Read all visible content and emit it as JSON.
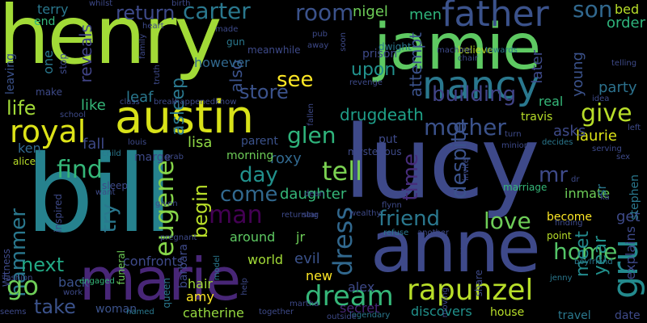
{
  "words": [
    {
      "text": "henry",
      "color": "#a2da37"
    },
    {
      "text": "bill",
      "color": "#26828e"
    },
    {
      "text": "lucy",
      "color": "#3e4989"
    },
    {
      "text": "jamie",
      "color": "#5ec962"
    },
    {
      "text": "anne",
      "color": "#3e4989"
    },
    {
      "text": "marie",
      "color": "#482677"
    },
    {
      "text": "austin",
      "color": "#d8e219"
    },
    {
      "text": "nancy",
      "color": "#2a788e"
    },
    {
      "text": "father",
      "color": "#3b528b"
    },
    {
      "text": "royal",
      "color": "#dde318"
    },
    {
      "text": "rapunzel",
      "color": "#b8de29"
    },
    {
      "text": "gru",
      "color": "#238a8d"
    },
    {
      "text": "dream",
      "color": "#35b779"
    },
    {
      "text": "tell",
      "color": "#7ad151"
    },
    {
      "text": "carter",
      "color": "#2a788e"
    },
    {
      "text": "return",
      "color": "#3e4a89"
    },
    {
      "text": "room",
      "color": "#3b528b"
    },
    {
      "text": "son",
      "color": "#31688e"
    },
    {
      "text": "mother",
      "color": "#3b528b"
    },
    {
      "text": "glen",
      "color": "#2fb47c"
    },
    {
      "text": "give",
      "color": "#b8de29"
    },
    {
      "text": "find",
      "color": "#35b779"
    },
    {
      "text": "man",
      "color": "#440154"
    },
    {
      "text": "love",
      "color": "#6ece58"
    },
    {
      "text": "friend",
      "color": "#2a788e"
    },
    {
      "text": "eugene",
      "color": "#86d549"
    },
    {
      "text": "dress",
      "color": "#31688e"
    },
    {
      "text": "hammer",
      "color": "#2a788e"
    },
    {
      "text": "go",
      "color": "#6ece58"
    },
    {
      "text": "next",
      "color": "#22a884"
    },
    {
      "text": "take",
      "color": "#3b528b"
    },
    {
      "text": "home",
      "color": "#54c568"
    },
    {
      "text": "life",
      "color": "#a2da37"
    },
    {
      "text": "store",
      "color": "#3b528b"
    },
    {
      "text": "see",
      "color": "#fde725"
    },
    {
      "text": "day",
      "color": "#21918c"
    },
    {
      "text": "come",
      "color": "#31688e"
    },
    {
      "text": "begin",
      "color": "#b8de29"
    },
    {
      "text": "try",
      "color": "#2a788e"
    },
    {
      "text": "mr",
      "color": "#3e4a89"
    },
    {
      "text": "building",
      "color": "#414487"
    },
    {
      "text": "despite",
      "color": "#3b528b"
    },
    {
      "text": "time",
      "color": "#472d7b"
    },
    {
      "text": "drug",
      "color": "#1f9e89"
    },
    {
      "text": "death",
      "color": "#1fa187"
    },
    {
      "text": "asleep",
      "color": "#2a788e"
    },
    {
      "text": "also",
      "color": "#3b528b"
    },
    {
      "text": "roxy",
      "color": "#31688e"
    },
    {
      "text": "daughter",
      "color": "#35b779"
    },
    {
      "text": "lisa",
      "color": "#8fd744"
    },
    {
      "text": "laurie",
      "color": "#dde318"
    },
    {
      "text": "asks",
      "color": "#3e4a89"
    },
    {
      "text": "meet",
      "color": "#238a8d"
    },
    {
      "text": "year",
      "color": "#21918c"
    },
    {
      "text": "explains",
      "color": "#3e4989"
    },
    {
      "text": "party",
      "color": "#2c728e"
    },
    {
      "text": "young",
      "color": "#3b528b"
    },
    {
      "text": "later",
      "color": "#3e4a89"
    },
    {
      "text": "real",
      "color": "#35b779"
    },
    {
      "text": "nigel",
      "color": "#6ece58"
    },
    {
      "text": "men",
      "color": "#2fb47c"
    },
    {
      "text": "upon",
      "color": "#21918c"
    },
    {
      "text": "attempt",
      "color": "#3b528b"
    },
    {
      "text": "prison",
      "color": "#3e4a89"
    },
    {
      "text": "however",
      "color": "#31688e"
    },
    {
      "text": "leaf",
      "color": "#2a788e"
    },
    {
      "text": "reveals",
      "color": "#414487"
    },
    {
      "text": "like",
      "color": "#35b779"
    },
    {
      "text": "ken",
      "color": "#31688e"
    },
    {
      "text": "fall",
      "color": "#3e4a89"
    },
    {
      "text": "marge",
      "color": "#3e4a89"
    },
    {
      "text": "parent",
      "color": "#3b528b"
    },
    {
      "text": "morning",
      "color": "#6ece58"
    },
    {
      "text": "barbara",
      "color": "#3e4a89"
    },
    {
      "text": "jr",
      "color": "#6ece58"
    },
    {
      "text": "evil",
      "color": "#3b528b"
    },
    {
      "text": "world",
      "color": "#a2da37"
    },
    {
      "text": "around",
      "color": "#5ec962"
    },
    {
      "text": "confronts",
      "color": "#3e4a89"
    },
    {
      "text": "back",
      "color": "#3b528b"
    },
    {
      "text": "hair",
      "color": "#a2da37"
    },
    {
      "text": "amy",
      "color": "#fde725"
    },
    {
      "text": "catherine",
      "color": "#95d840"
    },
    {
      "text": "woman",
      "color": "#3b528b"
    },
    {
      "text": "queen",
      "color": "#2a788e"
    },
    {
      "text": "new",
      "color": "#fde725"
    },
    {
      "text": "alex",
      "color": "#3e4a89"
    },
    {
      "text": "secret",
      "color": "#482677"
    },
    {
      "text": "discovers",
      "color": "#21918c"
    },
    {
      "text": "marriage",
      "color": "#35b779"
    },
    {
      "text": "become",
      "color": "#fde725"
    },
    {
      "text": "point",
      "color": "#b8de29"
    },
    {
      "text": "inmate",
      "color": "#6ece58"
    },
    {
      "text": "get",
      "color": "#3e4a89"
    },
    {
      "text": "sr",
      "color": "#2a788e"
    },
    {
      "text": "stephen",
      "color": "#2a788e"
    },
    {
      "text": "order",
      "color": "#2fb47c"
    },
    {
      "text": "bed",
      "color": "#b8de29"
    },
    {
      "text": "terry",
      "color": "#2a788e"
    },
    {
      "text": "end",
      "color": "#35b779"
    },
    {
      "text": "leaving",
      "color": "#3b528b"
    },
    {
      "text": "one",
      "color": "#2a788e"
    },
    {
      "text": "stop",
      "color": "#3e4a89"
    },
    {
      "text": "make",
      "color": "#3e4a89"
    },
    {
      "text": "alice",
      "color": "#b8de29"
    },
    {
      "text": "Witness",
      "color": "#3e4a89"
    },
    {
      "text": "seems",
      "color": "#3e4a89"
    },
    {
      "text": "fashion",
      "color": "#3e4a89"
    },
    {
      "text": "engaged",
      "color": "#35b779"
    },
    {
      "text": "work",
      "color": "#3e4a89"
    },
    {
      "text": "named",
      "color": "#2a788e"
    },
    {
      "text": "funeral",
      "color": "#6ece58"
    },
    {
      "text": "sleep",
      "color": "#3e4a89"
    },
    {
      "text": "want",
      "color": "#3e4a89"
    },
    {
      "text": "child",
      "color": "#2a788e"
    },
    {
      "text": "louis",
      "color": "#3e4a89"
    },
    {
      "text": "travis",
      "color": "#b8de29"
    },
    {
      "text": "mysterious",
      "color": "#3e4a89"
    },
    {
      "text": "dwight",
      "color": "#2a788e"
    },
    {
      "text": "meanwhile",
      "color": "#3e4a89"
    },
    {
      "text": "believe",
      "color": "#b8de29"
    },
    {
      "text": "machine",
      "color": "#3e4a89"
    },
    {
      "text": "towards",
      "color": "#2a788e"
    },
    {
      "text": "travel",
      "color": "#2a788e"
    },
    {
      "text": "date",
      "color": "#3e4a89"
    },
    {
      "text": "house",
      "color": "#b8de29"
    },
    {
      "text": "legendary",
      "color": "#2a788e"
    },
    {
      "text": "together",
      "color": "#3e4a89"
    },
    {
      "text": "outside",
      "color": "#3e4a89"
    },
    {
      "text": "help",
      "color": "#3e4a89"
    },
    {
      "text": "model",
      "color": "#2a788e"
    },
    {
      "text": "jenny",
      "color": "#2a788e"
    },
    {
      "text": "boyfriend",
      "color": "#2a788e"
    },
    {
      "text": "share",
      "color": "#3e4a89"
    },
    {
      "text": "moving",
      "color": "#3e4a89"
    },
    {
      "text": "kiss",
      "color": "#3e4a89"
    },
    {
      "text": "refuse",
      "color": "#2a788e"
    },
    {
      "text": "another",
      "color": "#3e4a89"
    },
    {
      "text": "wealthy",
      "color": "#3e4a89"
    },
    {
      "text": "say",
      "color": "#6ece58"
    },
    {
      "text": "flynn",
      "color": "#3e4a89"
    },
    {
      "text": "dean",
      "color": "#3e4a89"
    },
    {
      "text": "star",
      "color": "#3e4a89"
    },
    {
      "text": "returning",
      "color": "#3e4a89"
    },
    {
      "text": "given",
      "color": "#3e4a89"
    },
    {
      "text": "grab",
      "color": "#3e4a89"
    },
    {
      "text": "happened",
      "color": "#3e4a89"
    },
    {
      "text": "know",
      "color": "#3e4a89"
    },
    {
      "text": "class",
      "color": "#3e4a89"
    },
    {
      "text": "break",
      "color": "#3e4a89"
    },
    {
      "text": "school",
      "color": "#3e4a89"
    },
    {
      "text": "truth",
      "color": "#3e4a89"
    },
    {
      "text": "family",
      "color": "#3e4a89"
    },
    {
      "text": "heart",
      "color": "#3e4a89"
    },
    {
      "text": "whilst",
      "color": "#3e4a89"
    },
    {
      "text": "birth",
      "color": "#3e4a89"
    },
    {
      "text": "made",
      "color": "#3e4a89"
    },
    {
      "text": "gun",
      "color": "#2a788e"
    },
    {
      "text": "pub",
      "color": "#3e4a89"
    },
    {
      "text": "away",
      "color": "#3e4a89"
    },
    {
      "text": "soon",
      "color": "#3e4a89"
    },
    {
      "text": "chair",
      "color": "#3e4a89"
    },
    {
      "text": "revenge",
      "color": "#3e4a89"
    },
    {
      "text": "minion",
      "color": "#3e4a89"
    },
    {
      "text": "fallen",
      "color": "#3e4a89"
    },
    {
      "text": "idea",
      "color": "#3e4a89"
    },
    {
      "text": "decides",
      "color": "#2a788e"
    },
    {
      "text": "turn",
      "color": "#3e4a89"
    },
    {
      "text": "invite",
      "color": "#3e4a89"
    },
    {
      "text": "serving",
      "color": "#3e4a89"
    },
    {
      "text": "sex",
      "color": "#3e4a89"
    },
    {
      "text": "left",
      "color": "#3e4a89"
    },
    {
      "text": "telling",
      "color": "#3e4a89"
    },
    {
      "text": "finding",
      "color": "#3e4a89"
    },
    {
      "text": "pregnant",
      "color": "#3e4a89"
    },
    {
      "text": "inspired",
      "color": "#3e4a89"
    },
    {
      "text": "martha",
      "color": "#3e4a89"
    },
    {
      "text": "dr",
      "color": "#3e4a89"
    },
    {
      "text": "ka",
      "color": "#3e4a89"
    },
    {
      "text": "put",
      "color": "#3e4a89"
    }
  ]
}
